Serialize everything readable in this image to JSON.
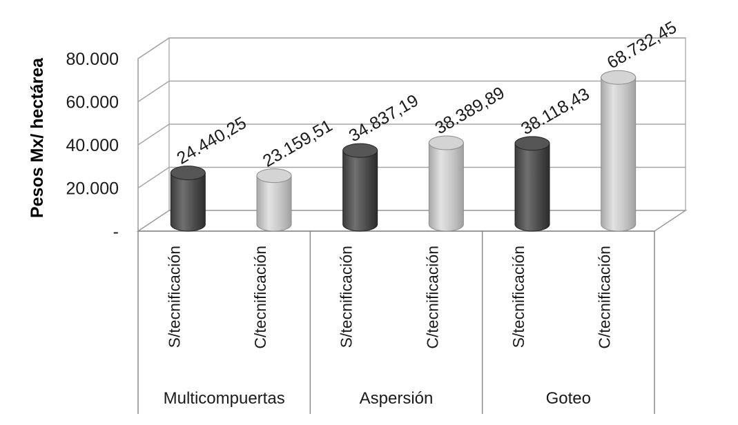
{
  "chart_data": {
    "type": "bar",
    "style": "3d-cylinder",
    "ylabel": "Pesos Mx/ hectárea",
    "ylim": [
      0,
      80000
    ],
    "yticks": [
      {
        "value": 0,
        "label": "-"
      },
      {
        "value": 20000,
        "label": "20.000"
      },
      {
        "value": 40000,
        "label": "40.000"
      },
      {
        "value": 60000,
        "label": "60.000"
      },
      {
        "value": 80000,
        "label": "80.000"
      }
    ],
    "grid": true,
    "groups": [
      "Multicompuertas",
      "Aspersión",
      "Goteo"
    ],
    "categories": [
      "S/tecnificación",
      "C/tecnificación",
      "S/tecnificación",
      "C/tecnificación",
      "S/tecnificación",
      "C/tecnificación"
    ],
    "values": [
      24440.25,
      23159.51,
      34837.19,
      38389.89,
      38118.43,
      68732.45
    ],
    "value_labels": [
      "24.440,25",
      "23.159,51",
      "34.837,19",
      "38.389,89",
      "38.118,43",
      "68.732,45"
    ],
    "bar_colors": [
      "#4d4d4d",
      "#bdbdbd",
      "#4d4d4d",
      "#bdbdbd",
      "#4d4d4d",
      "#bdbdbd"
    ]
  }
}
